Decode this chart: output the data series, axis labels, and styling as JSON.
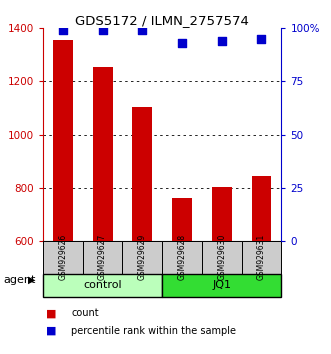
{
  "title": "GDS5172 / ILMN_2757574",
  "samples": [
    "GSM929626",
    "GSM929627",
    "GSM929629",
    "GSM929628",
    "GSM929630",
    "GSM929631"
  ],
  "counts": [
    1355,
    1255,
    1105,
    762,
    803,
    843
  ],
  "percentiles": [
    99,
    99,
    99,
    93,
    94,
    95
  ],
  "ylim_left": [
    600,
    1400
  ],
  "ylim_right": [
    0,
    100
  ],
  "yticks_left": [
    600,
    800,
    1000,
    1200,
    1400
  ],
  "yticks_right": [
    0,
    25,
    50,
    75,
    100
  ],
  "ytick_labels_right": [
    "0",
    "25",
    "50",
    "75",
    "100%"
  ],
  "groups": [
    {
      "label": "control",
      "indices": [
        0,
        1,
        2
      ],
      "color": "#bbffbb"
    },
    {
      "label": "JQ1",
      "indices": [
        3,
        4,
        5
      ],
      "color": "#33dd33"
    }
  ],
  "bar_color": "#cc0000",
  "dot_color": "#0000cc",
  "bar_width": 0.5,
  "agent_label": "agent",
  "legend_bar_label": "count",
  "legend_dot_label": "percentile rank within the sample",
  "left_tick_color": "#cc0000",
  "right_tick_color": "#0000cc",
  "grid_color": "#000000",
  "bg_color": "#ffffff",
  "sample_box_color": "#cccccc"
}
